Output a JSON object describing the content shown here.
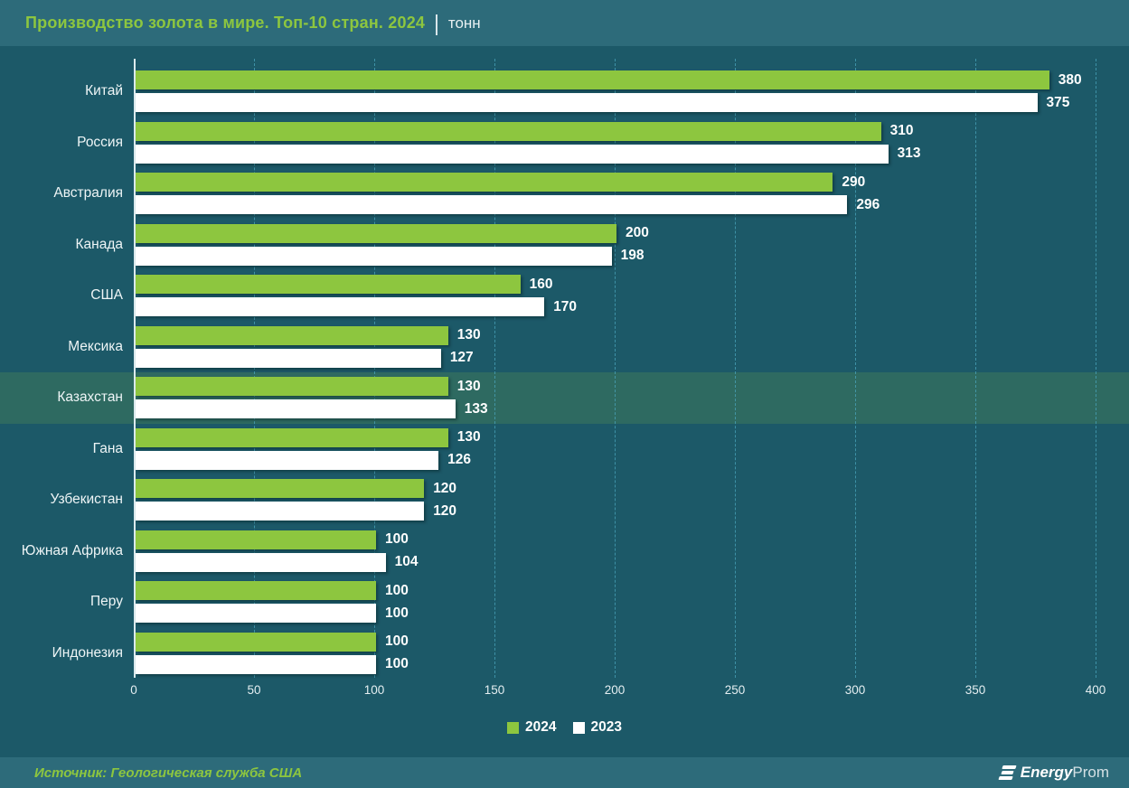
{
  "header": {
    "title": "Производство золота в мире. Топ-10 стран. 2024",
    "separator": "|",
    "unit": "тонн"
  },
  "chart_data": {
    "type": "bar",
    "orientation": "horizontal",
    "title": "Производство золота в мире. Топ-10 стран. 2024",
    "unit": "тонн",
    "categories": [
      "Китай",
      "Россия",
      "Австралия",
      "Канада",
      "США",
      "Мексика",
      "Казахстан",
      "Гана",
      "Узбекистан",
      "Южная Африка",
      "Перу",
      "Индонезия"
    ],
    "series": [
      {
        "name": "2024",
        "color": "#8dc63f",
        "values": [
          380,
          310,
          290,
          200,
          160,
          130,
          130,
          130,
          120,
          100,
          100,
          100
        ]
      },
      {
        "name": "2023",
        "color": "#ffffff",
        "values": [
          375,
          313,
          296,
          198,
          170,
          127,
          133,
          126,
          120,
          104,
          100,
          100
        ]
      }
    ],
    "xlim": [
      0,
      400
    ],
    "xticks": [
      0,
      50,
      100,
      150,
      200,
      250,
      300,
      350,
      400
    ],
    "grid": "vertical-dashed",
    "legend_position": "bottom-center",
    "highlighted_category": "Казахстан",
    "highlight_color": "#2e6a61",
    "background_color": "#1c5968",
    "accent_color": "#8dc63f"
  },
  "footer": {
    "source": "Источник: Геологическая служба США",
    "logo_energy": "Energy",
    "logo_prom": "Prom"
  }
}
